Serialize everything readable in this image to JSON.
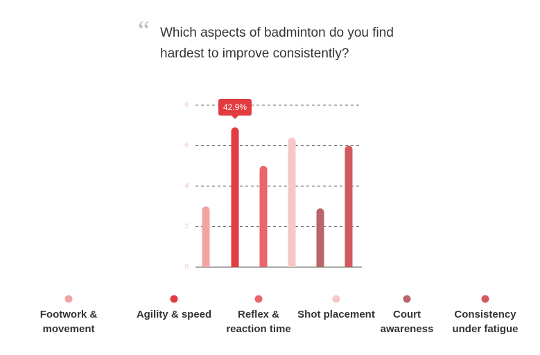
{
  "chart_data": {
    "type": "bar",
    "title_mark": "“",
    "title": "Which aspects of badminton do you find hardest to improve consistently?",
    "categories": [
      "Footwork & movement",
      "Agility & speed",
      "Reflex & reaction time",
      "Shot placement",
      "Court awareness",
      "Consistency under fatigue"
    ],
    "values": [
      3.0,
      6.9,
      5.0,
      6.4,
      2.9,
      6.0
    ],
    "colors": [
      "#f2a3a3",
      "#e23b40",
      "#e9666b",
      "#f7c7c7",
      "#b9646b",
      "#d1595f"
    ],
    "annotation": "42.9%",
    "ylim": [
      0,
      8
    ],
    "yticks": [
      0,
      2,
      4,
      6,
      8
    ],
    "grid": true
  }
}
